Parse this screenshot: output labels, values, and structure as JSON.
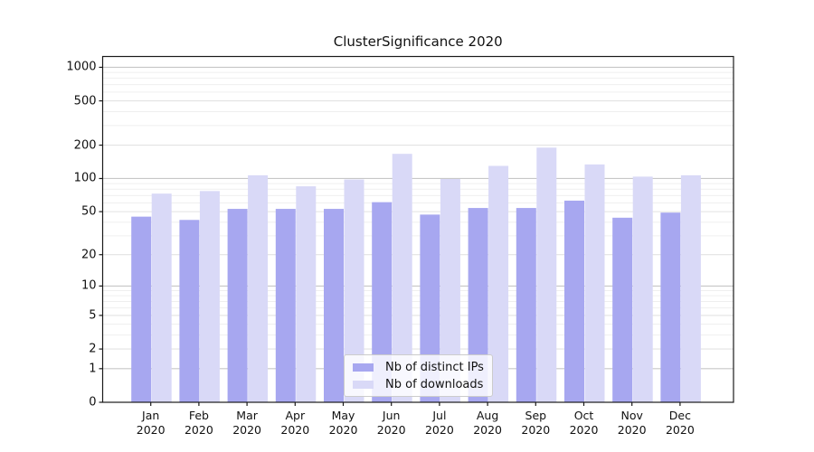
{
  "title": "ClusterSignificance 2020",
  "chart_data": {
    "type": "bar",
    "title": "ClusterSignificance 2020",
    "categories": [
      "Jan",
      "Feb",
      "Mar",
      "Apr",
      "May",
      "Jun",
      "Jul",
      "Aug",
      "Sep",
      "Oct",
      "Nov",
      "Dec"
    ],
    "category_year": "2020",
    "series": [
      {
        "name": "Nb of distinct IPs",
        "color": "#a7a7f0",
        "values": [
          45,
          42,
          53,
          53,
          53,
          61,
          47,
          54,
          54,
          63,
          44,
          49
        ]
      },
      {
        "name": "Nb of downloads",
        "color": "#d9d9f7",
        "values": [
          73,
          77,
          107,
          85,
          98,
          167,
          99,
          130,
          190,
          134,
          104,
          107
        ]
      }
    ],
    "yscale": "log1p",
    "ytick_labels": [
      "0",
      "1",
      "2",
      "5",
      "10",
      "20",
      "50",
      "100",
      "200",
      "500",
      "1000"
    ],
    "ytick_values": [
      0,
      1,
      2,
      5,
      10,
      20,
      50,
      100,
      200,
      500,
      1000
    ],
    "minor_gridline_values": [
      3,
      4,
      6,
      7,
      8,
      9,
      30,
      40,
      60,
      70,
      80,
      90,
      300,
      400,
      600,
      700,
      800,
      900
    ],
    "ylim": [
      0,
      1250
    ],
    "grid": true,
    "legend_position": "lower center"
  }
}
